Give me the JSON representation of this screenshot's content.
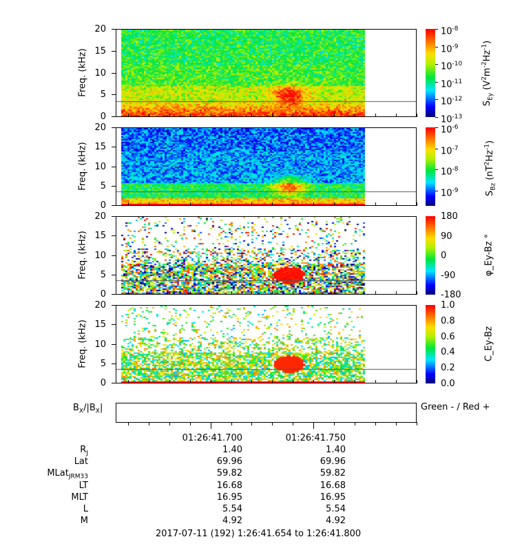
{
  "chart_data": [
    {
      "type": "heatmap",
      "ylabel": "Freq. (kHz)",
      "ylim": [
        0,
        20
      ],
      "yticks": [
        "0",
        "5",
        "10",
        "15",
        "20"
      ],
      "colorbar": {
        "label": "S_Ey (V^2m^-2Hz^-1)",
        "scale": "log",
        "range": [
          1e-13,
          1e-08
        ],
        "tick_exponents": [
          "-8",
          "-9",
          "-10",
          "-11",
          "-12",
          "-13"
        ]
      },
      "colormap": "rainbow",
      "reference_line_khz": 3.5
    },
    {
      "type": "heatmap",
      "ylabel": "Freq. (kHz)",
      "ylim": [
        0,
        20
      ],
      "yticks": [
        "0",
        "5",
        "10",
        "15",
        "20"
      ],
      "colorbar": {
        "label": "S_Bz (nT^2Hz^-1)",
        "scale": "log",
        "range": [
          1.8e-10,
          1e-06
        ],
        "tick_exponents": [
          "-6",
          "-7",
          "-8",
          "-9"
        ]
      },
      "colormap": "rainbow",
      "reference_line_khz": 3.5
    },
    {
      "type": "heatmap",
      "ylabel": "Freq. (kHz)",
      "ylim": [
        0,
        20
      ],
      "yticks": [
        "0",
        "5",
        "10",
        "15",
        "20"
      ],
      "colorbar": {
        "label": "φ_Ey-Bz °",
        "scale": "linear",
        "range": [
          -180,
          180
        ],
        "ticks": [
          "180",
          "90",
          "0",
          "-90",
          "-180"
        ]
      },
      "colormap": "rainbow",
      "reference_line_khz": 3.5
    },
    {
      "type": "heatmap",
      "ylabel": "Freq. (kHz)",
      "ylim": [
        0,
        20
      ],
      "yticks": [
        "0",
        "5",
        "10",
        "15",
        "20"
      ],
      "colorbar": {
        "label": "C_Ey-Bz",
        "scale": "linear",
        "range": [
          0,
          1
        ],
        "ticks": [
          "1.0",
          "0.8",
          "0.6",
          "0.4",
          "0.2",
          "0.0"
        ]
      },
      "colormap": "rainbow",
      "reference_line_khz": 3.5
    }
  ],
  "labels": {
    "freq": "Freq. (kHz)",
    "sey": {
      "s": "S",
      "sub": "Ey",
      "unit1": " (V",
      "sup1": "2",
      "m": "m",
      "sup2": "-2",
      "hz": "Hz",
      "sup3": "-1",
      "close": ")"
    },
    "sbz": {
      "s": "S",
      "sub": "Bz",
      "unit1": " (nT",
      "sup1": "2",
      "hz": "Hz",
      "sup3": "-1",
      "close": ")"
    },
    "phi": {
      "s": "φ",
      "sub": "Ey-Bz",
      "sup": "°"
    },
    "coh": {
      "s": "C",
      "sub": "Ey-Bz"
    },
    "bx": {
      "b1": "B",
      "sub1": "X",
      "slash": "/|B",
      "sub2": "X",
      "bar": "|"
    },
    "bx_legend": "Green - / Red +"
  },
  "time_axis": {
    "tick_labels": [
      "01:26:41.700",
      "01:26:41.750"
    ],
    "rows": [
      {
        "label": "R",
        "label_sub": "J",
        "values": [
          "1.40",
          "1.40"
        ]
      },
      {
        "label": "Lat",
        "label_sub": "",
        "values": [
          "69.96",
          "69.96"
        ]
      },
      {
        "label": "MLat",
        "label_sub": "JRM33",
        "values": [
          "59.82",
          "59.82"
        ]
      },
      {
        "label": "LT",
        "label_sub": "",
        "values": [
          "16.68",
          "16.68"
        ]
      },
      {
        "label": "MLT",
        "label_sub": "",
        "values": [
          "16.95",
          "16.95"
        ]
      },
      {
        "label": "L",
        "label_sub": "",
        "values": [
          "5.54",
          "5.54"
        ]
      },
      {
        "label": "M",
        "label_sub": "",
        "values": [
          "4.92",
          "4.92"
        ]
      }
    ],
    "range_text": "2017-07-11 (192) 1:26:41.654 to 1:26:41.800"
  }
}
